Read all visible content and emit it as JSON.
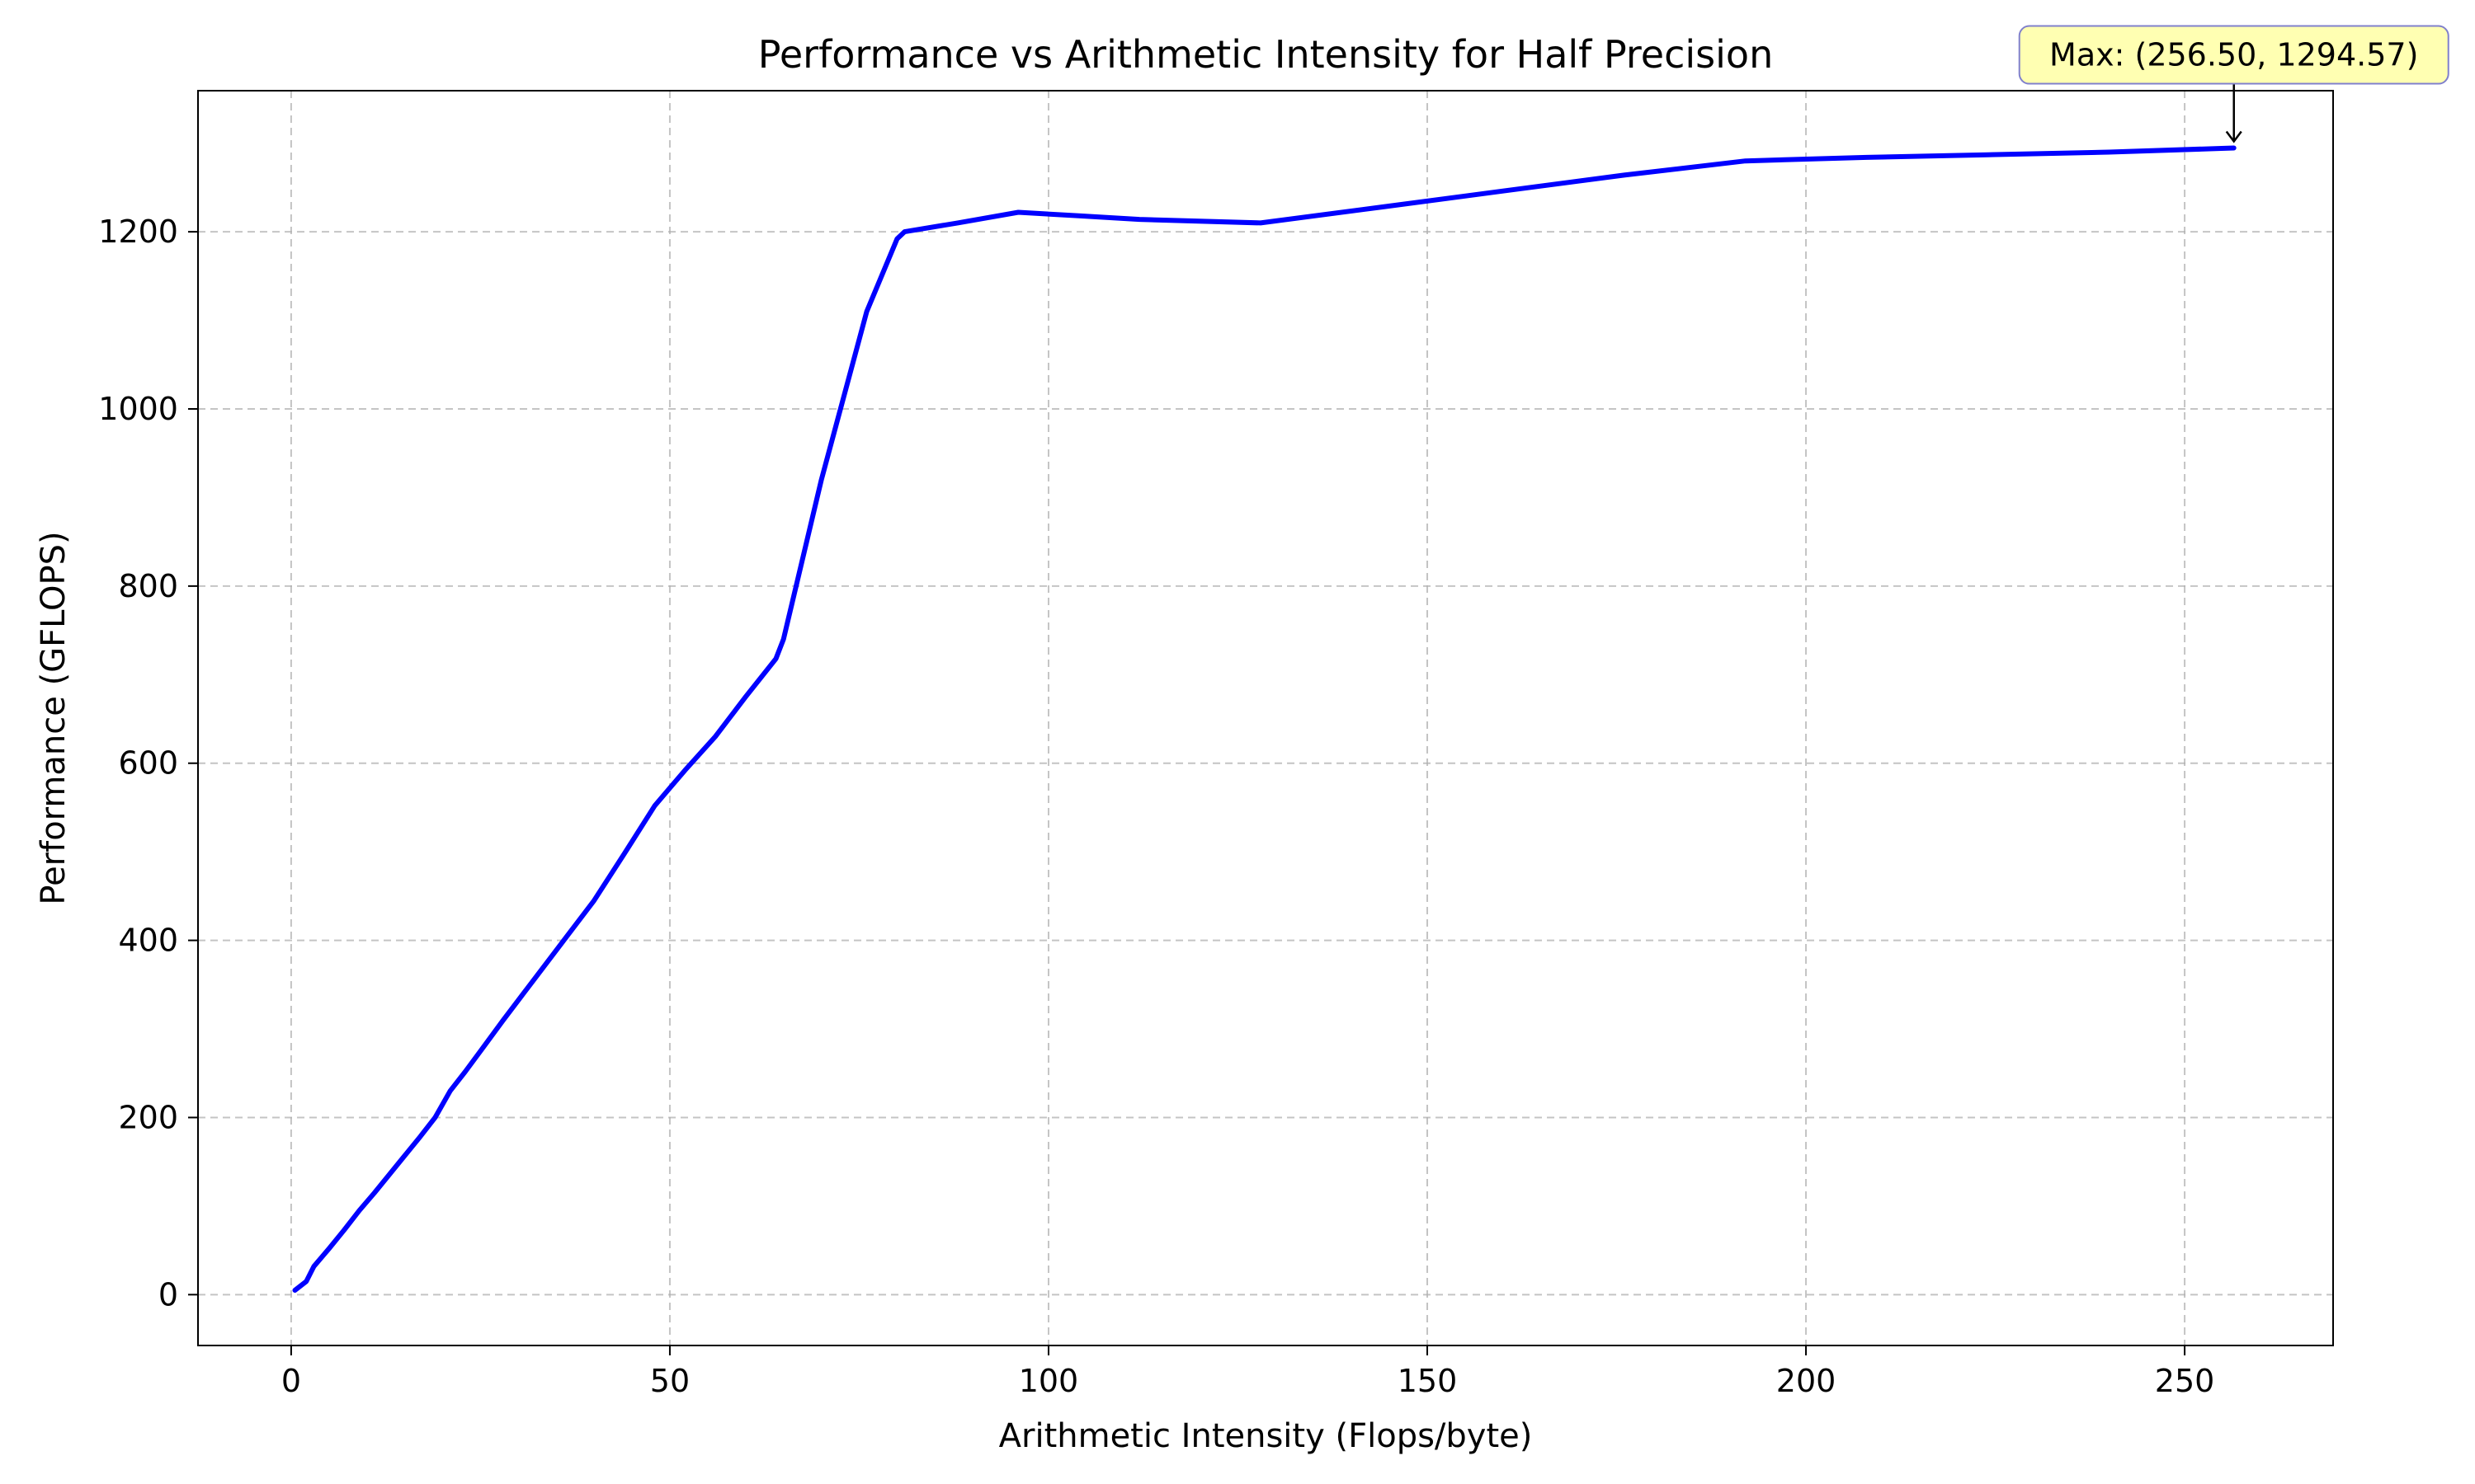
{
  "chart_data": {
    "type": "line",
    "title": "Performance vs Arithmetic Intensity for Half Precision",
    "xlabel": "Arithmetic Intensity (Flops/byte)",
    "ylabel": "Performance (GFLOPS)",
    "xlim": [
      -12.3,
      269.6
    ],
    "ylim": [
      -57.4,
      1359.3
    ],
    "xticks": [
      0,
      50,
      100,
      150,
      200,
      250
    ],
    "yticks": [
      0,
      200,
      400,
      600,
      800,
      1000,
      1200
    ],
    "x_tick_labels": [
      "0",
      "50",
      "100",
      "150",
      "200",
      "250"
    ],
    "y_tick_labels": [
      "0",
      "200",
      "400",
      "600",
      "800",
      "1000",
      "1200"
    ],
    "grid": true,
    "legend": "none",
    "series": [
      {
        "color": "#0000ff",
        "x": [
          0.5,
          2,
          3,
          5,
          7,
          9,
          11,
          13,
          15,
          17,
          19,
          21,
          23,
          25,
          28,
          32,
          36,
          40,
          44,
          48,
          50,
          52,
          56,
          60,
          64,
          65,
          70,
          76,
          80,
          81,
          88,
          96,
          104,
          112,
          128,
          144,
          160,
          176,
          192,
          208,
          224,
          240,
          256.5
        ],
        "y": [
          5,
          15,
          32,
          52,
          73,
          95,
          115,
          136,
          157,
          178,
          200,
          230,
          252,
          275,
          310,
          355,
          400,
          445,
          498,
          552,
          572,
          592,
          630,
          675,
          718,
          740,
          920,
          1110,
          1192,
          1200,
          1210,
          1222,
          1218,
          1214,
          1210,
          1228,
          1246,
          1264,
          1280,
          1284,
          1287,
          1290,
          1294.57
        ]
      }
    ],
    "annotations": [
      {
        "text": "Max: (256.50, 1294.57)",
        "x": 256.5,
        "y": 1294.57,
        "box_color": "#ffffaa",
        "border_color": "#8080cc"
      }
    ]
  }
}
